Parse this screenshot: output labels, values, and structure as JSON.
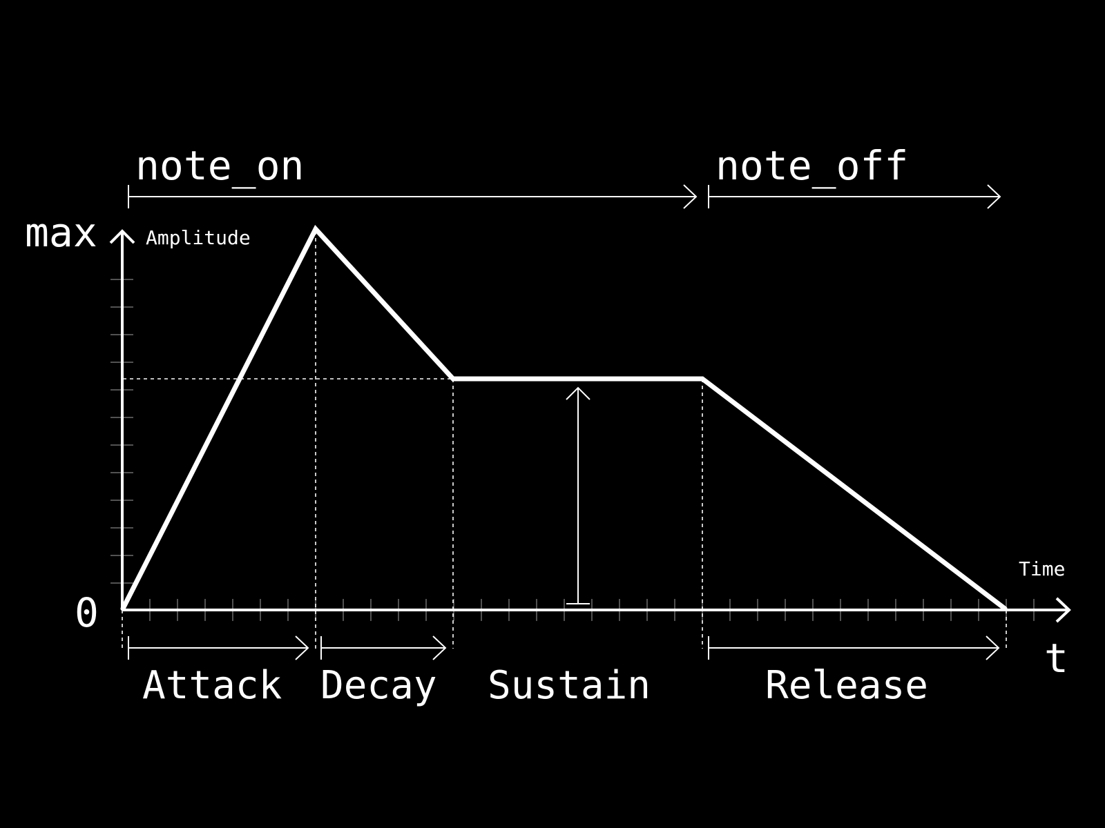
{
  "diagram": {
    "top_labels": {
      "note_on": "note_on",
      "note_off": "note_off"
    },
    "y_axis": {
      "max_label": "max",
      "zero_label": "0",
      "name": "Amplitude"
    },
    "x_axis": {
      "name": "Time",
      "symbol": "t"
    },
    "stages": [
      {
        "key": "attack",
        "label": "Attack"
      },
      {
        "key": "decay",
        "label": "Decay"
      },
      {
        "key": "sustain",
        "label": "Sustain"
      },
      {
        "key": "release",
        "label": "Release"
      }
    ],
    "colors": {
      "background": "#000000",
      "foreground": "#ffffff",
      "minor_tick": "#6e6e6e"
    }
  }
}
